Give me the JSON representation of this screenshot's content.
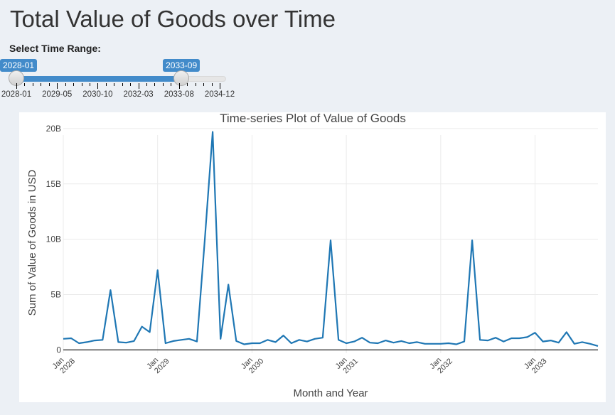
{
  "header": {
    "title": "Total Value of Goods over Time"
  },
  "slider": {
    "label": "Select Time Range:",
    "from_value": "2028-01",
    "to_value": "2033-09",
    "from_fraction": 0.0,
    "to_fraction": 0.8116,
    "tick_labels": [
      "2028-01",
      "2029-05",
      "2030-10",
      "2032-03",
      "2033-08",
      "2034-12"
    ],
    "accent_color": "#428bca"
  },
  "chart_data": {
    "type": "line",
    "title": "Time-series Plot of Value of Goods",
    "xlabel": "Month and Year",
    "ylabel": "Sum of Value of Goods in USD",
    "ylim": [
      -0.3,
      20.7
    ],
    "y_unit": "B",
    "y_ticks": [
      {
        "value": 0,
        "label": "0"
      },
      {
        "value": 5,
        "label": "5B"
      },
      {
        "value": 10,
        "label": "10B"
      },
      {
        "value": 15,
        "label": "15B"
      },
      {
        "value": 20,
        "label": "20B"
      }
    ],
    "x_ticks": [
      {
        "index": 0,
        "month": "Jan",
        "year": "2028"
      },
      {
        "index": 12,
        "month": "Jan",
        "year": "2029"
      },
      {
        "index": 24,
        "month": "Jan",
        "year": "2030"
      },
      {
        "index": 36,
        "month": "Jan",
        "year": "2031"
      },
      {
        "index": 48,
        "month": "Jan",
        "year": "2032"
      },
      {
        "index": 60,
        "month": "Jan",
        "year": "2033"
      }
    ],
    "x_start": "2028-01",
    "x_end": "2033-09",
    "grid": true,
    "line_color": "#1f77b4",
    "series": [
      {
        "values": [
          1.0,
          1.05,
          0.6,
          0.7,
          0.85,
          0.9,
          5.4,
          0.7,
          0.65,
          0.8,
          2.1,
          1.6,
          7.2,
          0.6,
          0.8,
          0.9,
          1.0,
          0.75,
          10.0,
          19.7,
          1.0,
          5.9,
          0.8,
          0.5,
          0.6,
          0.6,
          0.9,
          0.7,
          1.3,
          0.6,
          0.9,
          0.75,
          1.0,
          1.1,
          9.9,
          0.9,
          0.6,
          0.75,
          1.1,
          0.65,
          0.6,
          0.85,
          0.65,
          0.8,
          0.6,
          0.7,
          0.55,
          0.55,
          0.55,
          0.6,
          0.5,
          0.75,
          9.9,
          0.9,
          0.85,
          1.1,
          0.75,
          1.05,
          1.05,
          1.15,
          1.55,
          0.75,
          0.85,
          0.65,
          1.6,
          0.55,
          0.7,
          0.55,
          0.35
        ]
      }
    ]
  }
}
